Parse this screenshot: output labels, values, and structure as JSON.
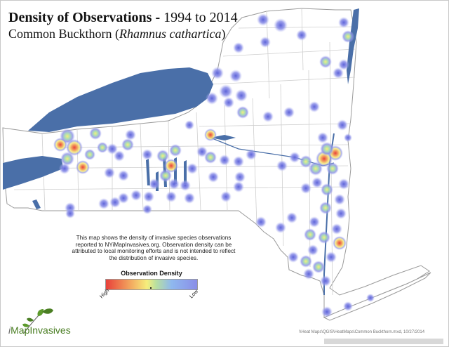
{
  "title": {
    "bold": "Density of Observations -",
    "normal": " 1994 to 2014"
  },
  "subtitle": {
    "common_name": "Common Buckthorn (",
    "scientific_name": "Rhamnus cathartica",
    "close": ")"
  },
  "note_text": "This map shows the density of invasive species observations reported to NYiMapInvasives.org. Observation density can be attributed to local monitoring efforts and is not intended to reflect the distribution of invasive species.",
  "legend": {
    "title": "Observation Density",
    "high_label": "High",
    "low_label": "Low",
    "gradient_colors": [
      "#e8403a",
      "#f2a05c",
      "#f6ee7c",
      "#b8e0a0",
      "#8fb8ef",
      "#8a8ee8"
    ]
  },
  "logo": {
    "name_prefix": "i",
    "name_rest": "Map",
    "name_tail": "Invasives",
    "icon": "leaf-sprig-icon"
  },
  "file_path": "\\\\Heat Maps\\QGIS\\HeatMaps\\Common Buckthorn.mxd, 10/27/2014",
  "colors": {
    "water": "#4a6fa8",
    "land": "#ffffff",
    "county_lines": "#c9c9c9",
    "state_outline": "#9a9a9a",
    "low_density": "#7b7fe0",
    "high_density": "#e8403a"
  }
}
